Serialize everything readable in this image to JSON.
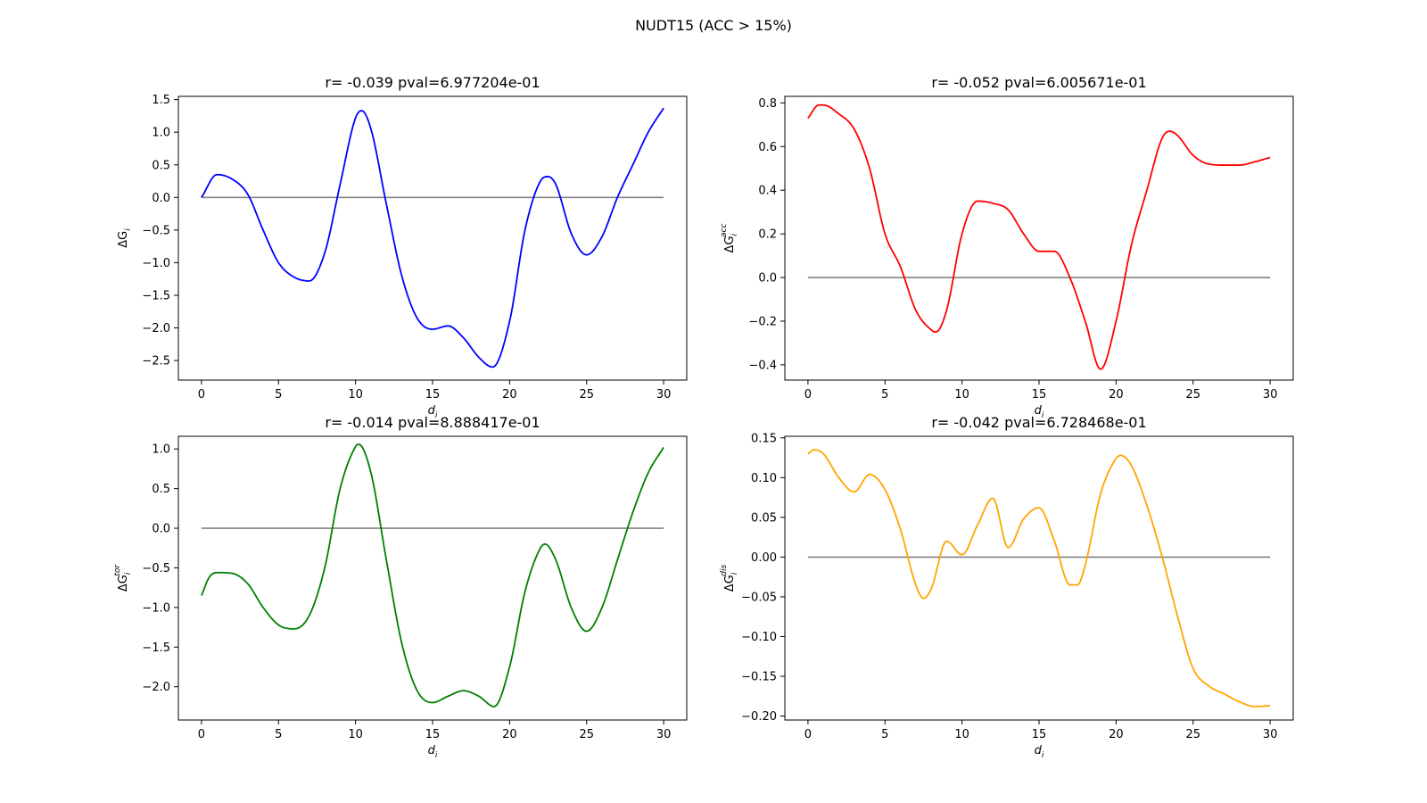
{
  "figure": {
    "title": "NUDT15 (ACC > 15%)"
  },
  "chart_data": [
    {
      "type": "line",
      "title": "r= -0.039 pval=6.977204e-01",
      "xlabel_base": "d",
      "xlabel_sub": "i",
      "ylabel_base": "ΔG",
      "ylabel_sub": "i",
      "ylabel_sup": "",
      "xlim": [
        -1.5,
        31.5
      ],
      "ylim": [
        -2.8,
        1.55
      ],
      "xticks": [
        0,
        5,
        10,
        15,
        20,
        25,
        30
      ],
      "yticks": [
        -2.5,
        -2.0,
        -1.5,
        -1.0,
        -0.5,
        0.0,
        0.5,
        1.0,
        1.5
      ],
      "tick_decimals": 1,
      "grid": false,
      "baseline": 0,
      "baseline_color": "#808080",
      "series": [
        {
          "color": "#0000ff",
          "x": [
            0,
            1,
            2,
            3,
            4,
            5,
            6,
            7,
            8,
            9,
            10,
            10.4,
            11,
            12,
            13,
            14,
            15,
            16,
            17,
            18,
            18.9,
            20,
            21,
            22,
            22.5,
            23,
            24,
            25,
            26,
            27,
            28,
            29,
            30
          ],
          "y": [
            0.0,
            0.35,
            0.28,
            0.05,
            -0.5,
            -1.0,
            -1.22,
            -1.28,
            -0.85,
            0.2,
            1.22,
            1.33,
            1.05,
            -0.1,
            -1.2,
            -1.85,
            -2.02,
            -1.97,
            -2.15,
            -2.45,
            -2.6,
            -1.9,
            -0.5,
            0.25,
            0.32,
            0.2,
            -0.55,
            -0.88,
            -0.6,
            0.0,
            0.5,
            1.0,
            1.37
          ]
        }
      ]
    },
    {
      "type": "line",
      "title": "r= -0.052 pval=6.005671e-01",
      "xlabel_base": "d",
      "xlabel_sub": "i",
      "ylabel_base": "ΔG",
      "ylabel_sub": "i",
      "ylabel_sup": "acc",
      "xlim": [
        -1.5,
        31.5
      ],
      "ylim": [
        -0.47,
        0.83
      ],
      "xticks": [
        0,
        5,
        10,
        15,
        20,
        25,
        30
      ],
      "yticks": [
        -0.4,
        -0.2,
        0.0,
        0.2,
        0.4,
        0.6,
        0.8
      ],
      "tick_decimals": 1,
      "grid": false,
      "baseline": 0,
      "baseline_color": "#808080",
      "series": [
        {
          "color": "#ff0000",
          "x": [
            0,
            0.7,
            1,
            2,
            3,
            4,
            5,
            6,
            7,
            8,
            8.3,
            9,
            10,
            11,
            12,
            13,
            14,
            15,
            16,
            17,
            18,
            19,
            20,
            21,
            22,
            23,
            23.5,
            24,
            25,
            26,
            27,
            28,
            29,
            30
          ],
          "y": [
            0.73,
            0.79,
            0.79,
            0.75,
            0.68,
            0.5,
            0.2,
            0.05,
            -0.15,
            -0.24,
            -0.25,
            -0.15,
            0.2,
            0.35,
            0.34,
            0.31,
            0.2,
            0.12,
            0.12,
            0.0,
            -0.2,
            -0.42,
            -0.2,
            0.15,
            0.4,
            0.64,
            0.67,
            0.65,
            0.56,
            0.52,
            0.515,
            0.515,
            0.53,
            0.55
          ]
        }
      ]
    },
    {
      "type": "line",
      "title": "r= -0.014 pval=8.888417e-01",
      "xlabel_base": "d",
      "xlabel_sub": "i",
      "ylabel_base": "ΔG",
      "ylabel_sub": "i",
      "ylabel_sup": "tor",
      "xlim": [
        -1.5,
        31.5
      ],
      "ylim": [
        -2.42,
        1.16
      ],
      "xticks": [
        0,
        5,
        10,
        15,
        20,
        25,
        30
      ],
      "yticks": [
        -2.0,
        -1.5,
        -1.0,
        -0.5,
        0.0,
        0.5,
        1.0
      ],
      "tick_decimals": 1,
      "grid": false,
      "baseline": 0,
      "baseline_color": "#808080",
      "series": [
        {
          "color": "#008000",
          "x": [
            0,
            0.5,
            1,
            2,
            3,
            4,
            5,
            6,
            7,
            8,
            9,
            10,
            10.2,
            11,
            12,
            13,
            14,
            15,
            16,
            17,
            18,
            19,
            20,
            21,
            22,
            22.3,
            23,
            24,
            25,
            26,
            27,
            28,
            29,
            30
          ],
          "y": [
            -0.85,
            -0.62,
            -0.56,
            -0.57,
            -0.7,
            -1.0,
            -1.22,
            -1.27,
            -1.1,
            -0.5,
            0.5,
            1.03,
            1.06,
            0.7,
            -0.4,
            -1.45,
            -2.05,
            -2.2,
            -2.12,
            -2.05,
            -2.12,
            -2.25,
            -1.75,
            -0.8,
            -0.25,
            -0.2,
            -0.4,
            -1.0,
            -1.3,
            -1.0,
            -0.4,
            0.2,
            0.7,
            1.02
          ]
        }
      ]
    },
    {
      "type": "line",
      "title": "r= -0.042 pval=6.728468e-01",
      "xlabel_base": "d",
      "xlabel_sub": "i",
      "ylabel_base": "ΔG",
      "ylabel_sub": "i",
      "ylabel_sup": "dis",
      "xlim": [
        -1.5,
        31.5
      ],
      "ylim": [
        -0.205,
        0.152
      ],
      "xticks": [
        0,
        5,
        10,
        15,
        20,
        25,
        30
      ],
      "yticks": [
        -0.2,
        -0.15,
        -0.1,
        -0.05,
        0.0,
        0.05,
        0.1,
        0.15
      ],
      "tick_decimals": 2,
      "grid": false,
      "baseline": 0,
      "baseline_color": "#808080",
      "series": [
        {
          "color": "#ffa500",
          "x": [
            0,
            0.4,
            1,
            2,
            3,
            4,
            5,
            6,
            7,
            7.5,
            8,
            9,
            10,
            11,
            12,
            13,
            14,
            15,
            16,
            17,
            17.5,
            18,
            19,
            20,
            20.3,
            21,
            22,
            23,
            24,
            25,
            26,
            27,
            28,
            29,
            30
          ],
          "y": [
            0.13,
            0.135,
            0.13,
            0.1,
            0.082,
            0.104,
            0.085,
            0.035,
            -0.035,
            -0.052,
            -0.04,
            0.02,
            0.003,
            0.04,
            0.074,
            0.012,
            0.048,
            0.062,
            0.02,
            -0.035,
            -0.035,
            -0.01,
            0.08,
            0.124,
            0.128,
            0.115,
            0.065,
            0.0,
            -0.075,
            -0.14,
            -0.162,
            -0.172,
            -0.182,
            -0.188,
            -0.187
          ]
        }
      ]
    }
  ]
}
